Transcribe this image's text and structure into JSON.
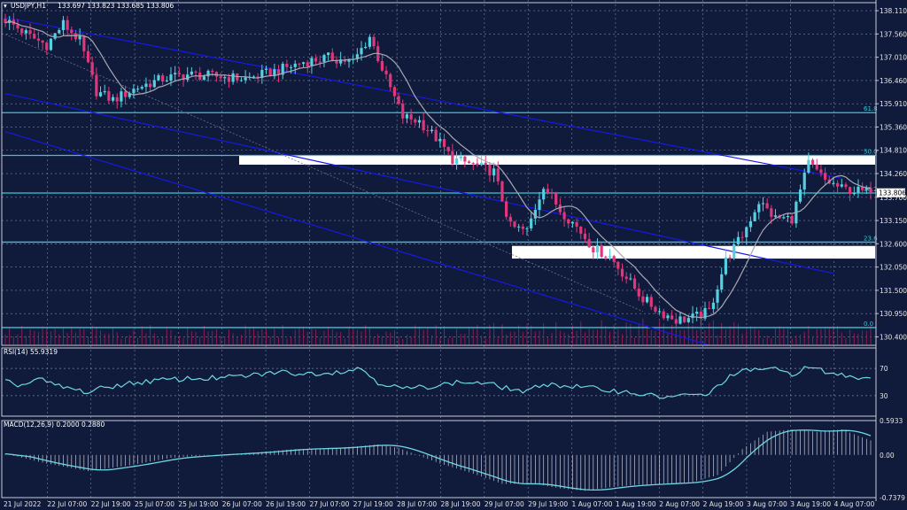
{
  "header": {
    "symbol": "USDJPY,H1",
    "quote": "133.697 133.823 133.685 133.806"
  },
  "colors": {
    "background": "#101a3a",
    "grid": "#7d86a6",
    "bull": "#55d0e0",
    "bear": "#e0377a",
    "ma": "#a8a8b4",
    "channel": "#1818e8",
    "fib": "#38c6d8",
    "volume": "#8a1f52",
    "oscillator": "#6fd7e3",
    "zone": "#ffffff",
    "price_box": "#ffffff"
  },
  "chart_data": [
    {
      "type": "candlestick",
      "panel": "price",
      "ylim": [
        130.2,
        138.3
      ],
      "price_ticks": [
        "138.110",
        "137.560",
        "137.010",
        "136.460",
        "135.910",
        "135.360",
        "134.810",
        "134.260",
        "133.700",
        "133.150",
        "132.600",
        "132.050",
        "131.500",
        "130.950",
        "130.400"
      ],
      "current_price": "133.806",
      "x_labels": [
        "21 Jul 2022",
        "22 Jul 07:00",
        "22 Jul 19:00",
        "25 Jul 07:00",
        "25 Jul 19:00",
        "26 Jul 07:00",
        "26 Jul 19:00",
        "27 Jul 07:00",
        "27 Jul 19:00",
        "28 Jul 07:00",
        "28 Jul 19:00",
        "29 Jul 07:00",
        "29 Jul 19:00",
        "1 Aug 07:00",
        "1 Aug 19:00",
        "2 Aug 07:00",
        "2 Aug 19:00",
        "3 Aug 07:00",
        "3 Aug 19:00",
        "4 Aug 07:00"
      ],
      "price_anchors": [
        [
          0,
          137.9
        ],
        [
          6,
          137.5
        ],
        [
          10,
          137.3
        ],
        [
          14,
          137.8
        ],
        [
          18,
          137.4
        ],
        [
          22,
          136.2
        ],
        [
          26,
          136.0
        ],
        [
          32,
          136.3
        ],
        [
          38,
          136.5
        ],
        [
          44,
          136.6
        ],
        [
          52,
          136.55
        ],
        [
          58,
          136.5
        ],
        [
          66,
          136.7
        ],
        [
          72,
          136.9
        ],
        [
          78,
          137.0
        ],
        [
          84,
          136.9
        ],
        [
          88,
          137.5
        ],
        [
          92,
          136.5
        ],
        [
          96,
          135.6
        ],
        [
          100,
          135.5
        ],
        [
          104,
          135.1
        ],
        [
          108,
          134.6
        ],
        [
          112,
          134.5
        ],
        [
          118,
          134.3
        ],
        [
          122,
          133.0
        ],
        [
          126,
          132.9
        ],
        [
          130,
          134.0
        ],
        [
          134,
          133.4
        ],
        [
          138,
          133.0
        ],
        [
          142,
          132.5
        ],
        [
          146,
          132.3
        ],
        [
          150,
          131.8
        ],
        [
          154,
          131.3
        ],
        [
          158,
          131.0
        ],
        [
          162,
          130.8
        ],
        [
          166,
          130.85
        ],
        [
          170,
          131.0
        ],
        [
          174,
          132.2
        ],
        [
          178,
          132.8
        ],
        [
          182,
          133.6
        ],
        [
          186,
          133.2
        ],
        [
          190,
          133.2
        ],
        [
          194,
          134.5
        ],
        [
          198,
          134.1
        ],
        [
          202,
          133.9
        ],
        [
          206,
          133.85
        ],
        [
          209,
          133.806
        ]
      ],
      "ma_lag": 10,
      "fib_levels": [
        {
          "label": "61.8",
          "price": 135.7
        },
        {
          "label": "50.0",
          "price": 134.69
        },
        {
          "label": "38.2",
          "price": 133.8
        },
        {
          "label": "23.6",
          "price": 132.64
        },
        {
          "label": "0.0",
          "price": 130.62
        }
      ],
      "zones": [
        {
          "top": 134.69,
          "bottom": 134.47
        },
        {
          "top": 132.55,
          "bottom": 132.25
        }
      ],
      "channel_lines": [
        {
          "from": [
            0,
            137.95
          ],
          "to": [
            202,
            134.15
          ]
        },
        {
          "from": [
            0,
            136.15
          ],
          "to": [
            200,
            131.9
          ]
        },
        {
          "from": [
            0,
            135.25
          ],
          "to": [
            170,
            130.2
          ]
        },
        {
          "from": [
            0,
            137.55
          ],
          "to": [
            154,
            131.0
          ],
          "dotted": true
        }
      ]
    },
    {
      "type": "line",
      "panel": "rsi",
      "title": "RSI(14) 55.9319",
      "ylim": [
        0,
        100
      ],
      "levels": [
        "70",
        "30"
      ],
      "anchors": [
        [
          0,
          50
        ],
        [
          4,
          45
        ],
        [
          8,
          55
        ],
        [
          12,
          45
        ],
        [
          16,
          40
        ],
        [
          20,
          35
        ],
        [
          24,
          42
        ],
        [
          30,
          48
        ],
        [
          36,
          52
        ],
        [
          44,
          55
        ],
        [
          52,
          56
        ],
        [
          60,
          60
        ],
        [
          66,
          65
        ],
        [
          72,
          62
        ],
        [
          80,
          65
        ],
        [
          86,
          70
        ],
        [
          90,
          50
        ],
        [
          96,
          40
        ],
        [
          100,
          42
        ],
        [
          104,
          45
        ],
        [
          110,
          50
        ],
        [
          116,
          48
        ],
        [
          122,
          40
        ],
        [
          126,
          35
        ],
        [
          130,
          48
        ],
        [
          134,
          45
        ],
        [
          140,
          42
        ],
        [
          146,
          38
        ],
        [
          152,
          34
        ],
        [
          158,
          28
        ],
        [
          164,
          30
        ],
        [
          170,
          32
        ],
        [
          174,
          55
        ],
        [
          178,
          65
        ],
        [
          182,
          70
        ],
        [
          186,
          68
        ],
        [
          190,
          62
        ],
        [
          194,
          72
        ],
        [
          200,
          62
        ],
        [
          205,
          58
        ],
        [
          209,
          55.93
        ]
      ]
    },
    {
      "type": "histogram+line",
      "panel": "macd",
      "title": "MACD(12,26,9) 0.2000 0.2880",
      "ylim": [
        -0.7379,
        0.5933
      ],
      "ticks": [
        "0.5933",
        "0.00",
        "-0.7379"
      ],
      "macd_anchors": [
        [
          0,
          0.02
        ],
        [
          10,
          -0.15
        ],
        [
          20,
          -0.28
        ],
        [
          30,
          -0.18
        ],
        [
          40,
          -0.05
        ],
        [
          50,
          0.0
        ],
        [
          60,
          0.04
        ],
        [
          70,
          0.1
        ],
        [
          80,
          0.12
        ],
        [
          90,
          0.18
        ],
        [
          95,
          0.12
        ],
        [
          105,
          -0.15
        ],
        [
          112,
          -0.3
        ],
        [
          120,
          -0.5
        ],
        [
          128,
          -0.5
        ],
        [
          134,
          -0.58
        ],
        [
          140,
          -0.62
        ],
        [
          146,
          -0.56
        ],
        [
          152,
          -0.52
        ],
        [
          158,
          -0.5
        ],
        [
          166,
          -0.47
        ],
        [
          172,
          -0.35
        ],
        [
          178,
          0.1
        ],
        [
          184,
          0.4
        ],
        [
          190,
          0.44
        ],
        [
          196,
          0.4
        ],
        [
          202,
          0.44
        ],
        [
          209,
          0.25
        ]
      ],
      "signal_lag": 7
    }
  ]
}
